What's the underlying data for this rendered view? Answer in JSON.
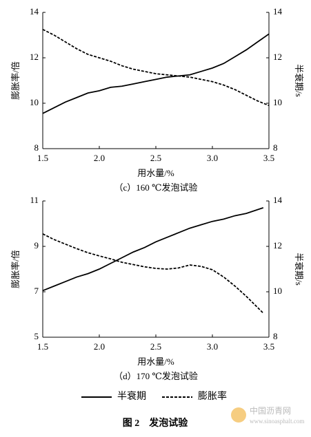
{
  "figure_caption": "图 2　发泡试验",
  "watermark": {
    "name": "中国沥青网",
    "url": "www.sinoasphalt.com"
  },
  "legend_series": 1,
  "chart_data": [
    {
      "type": "line",
      "caption": "（c）160 ℃发泡试验",
      "xlabel": "用水量/%",
      "ylabel": "膨胀率/倍",
      "y2label": "半衰期/s",
      "x": [
        1.5,
        1.6,
        1.7,
        1.8,
        1.9,
        2.0,
        2.1,
        2.2,
        2.3,
        2.4,
        2.5,
        2.6,
        2.7,
        2.8,
        2.9,
        3.0,
        3.1,
        3.2,
        3.3,
        3.4,
        3.5
      ],
      "xlim": [
        1.5,
        3.5
      ],
      "xticks": [
        1.5,
        {
          "value": 2,
          "label": "2.0"
        },
        2.5,
        {
          "value": 3,
          "label": "3.0"
        },
        3.5
      ],
      "ylim": [
        8,
        14
      ],
      "yticks": [
        8,
        10,
        12,
        14
      ],
      "y2lim": [
        8,
        14
      ],
      "y2ticks": [
        8,
        10,
        12,
        14
      ],
      "series": [
        {
          "name": "半衰期",
          "color": "#000000",
          "style": "solid",
          "axis": "y2",
          "values": [
            9.55,
            9.8,
            10.05,
            10.25,
            10.45,
            10.55,
            10.7,
            10.75,
            10.85,
            10.95,
            11.05,
            11.15,
            11.2,
            11.25,
            11.4,
            11.55,
            11.75,
            12.05,
            12.35,
            12.7,
            13.05
          ]
        },
        {
          "name": "膨胀率",
          "color": "#000000",
          "style": "dashed",
          "axis": "y",
          "values": [
            13.25,
            13.0,
            12.7,
            12.4,
            12.15,
            12.0,
            11.85,
            11.65,
            11.5,
            11.4,
            11.3,
            11.25,
            11.2,
            11.15,
            11.05,
            10.95,
            10.8,
            10.6,
            10.35,
            10.1,
            9.9
          ]
        }
      ]
    },
    {
      "type": "line",
      "caption": "（d）170 ℃发泡试验",
      "xlabel": "用水量/%",
      "ylabel": "膨胀率/倍",
      "y2label": "半衰期/s",
      "x": [
        1.5,
        1.6,
        1.7,
        1.8,
        1.9,
        2.0,
        2.1,
        2.2,
        2.3,
        2.4,
        2.5,
        2.6,
        2.7,
        2.8,
        2.9,
        3.0,
        3.1,
        3.2,
        3.3,
        3.45
      ],
      "xlim": [
        1.5,
        3.5
      ],
      "xticks": [
        1.5,
        {
          "value": 2,
          "label": "2.0"
        },
        2.5,
        {
          "value": 3,
          "label": "3.0"
        },
        3.5
      ],
      "ylim": [
        5,
        11
      ],
      "yticks": [
        5,
        7,
        9,
        11
      ],
      "y2lim": [
        8,
        14
      ],
      "y2ticks": [
        8,
        10,
        12,
        14
      ],
      "series": [
        {
          "name": "半衰期",
          "color": "#000000",
          "style": "solid",
          "axis": "y2",
          "values": [
            10.05,
            10.25,
            10.45,
            10.65,
            10.8,
            11.0,
            11.25,
            11.5,
            11.75,
            11.95,
            12.2,
            12.4,
            12.6,
            12.8,
            12.95,
            13.1,
            13.2,
            13.35,
            13.45,
            13.7
          ]
        },
        {
          "name": "膨胀率",
          "color": "#000000",
          "style": "dashed",
          "axis": "y",
          "values": [
            9.55,
            9.3,
            9.1,
            8.9,
            8.72,
            8.58,
            8.45,
            8.3,
            8.2,
            8.1,
            8.03,
            8.0,
            8.05,
            8.18,
            8.12,
            7.97,
            7.65,
            7.25,
            6.8,
            6.06
          ]
        }
      ]
    }
  ]
}
